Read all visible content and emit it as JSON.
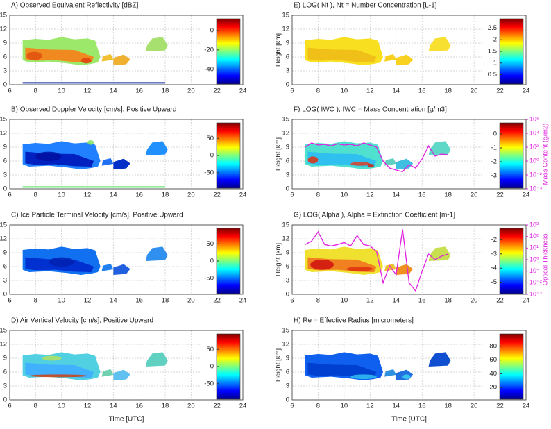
{
  "chart_data": [
    {
      "type": "heatmap",
      "title": "A) Observed Equivalent Reflectivity [dBZ]",
      "xlim": [
        6,
        24
      ],
      "xticks": [
        6,
        8,
        10,
        12,
        14,
        16,
        18,
        20,
        22,
        24
      ],
      "ylim": [
        0,
        15
      ],
      "yticks": [
        0,
        3,
        6,
        9,
        12,
        15
      ],
      "grid": true,
      "colorbar": {
        "colormap": "jet",
        "lim": [
          -55,
          12
        ],
        "ticks": [
          0,
          -20,
          -40
        ]
      }
    },
    {
      "type": "heatmap",
      "title": "B) Observed Doppler Velocity [cm/s], Positive Upward",
      "xlim": [
        6,
        24
      ],
      "xticks": [
        6,
        8,
        10,
        12,
        14,
        16,
        18,
        20,
        22,
        24
      ],
      "ylim": [
        0,
        15
      ],
      "yticks": [
        0,
        3,
        6,
        9,
        12,
        15
      ],
      "grid": true,
      "colorbar": {
        "colormap": "jet",
        "lim": [
          -95,
          95
        ],
        "ticks": [
          50,
          0,
          -50
        ]
      }
    },
    {
      "type": "heatmap",
      "title": "C) Ice Particle Terminal Velocity [cm/s], Positive Upward",
      "xlim": [
        6,
        24
      ],
      "xticks": [
        6,
        8,
        10,
        12,
        14,
        16,
        18,
        20,
        22,
        24
      ],
      "ylim": [
        0,
        15
      ],
      "yticks": [
        0,
        3,
        6,
        9,
        12,
        15
      ],
      "grid": true,
      "colorbar": {
        "colormap": "jet",
        "lim": [
          -95,
          95
        ],
        "ticks": [
          50,
          0,
          -50
        ]
      }
    },
    {
      "type": "heatmap",
      "title": "D) Air Vertical Velocity [cm/s], Positive Upward",
      "xlim": [
        6,
        24
      ],
      "xticks": [
        6,
        8,
        10,
        12,
        14,
        16,
        18,
        20,
        22,
        24
      ],
      "ylim": [
        0,
        15
      ],
      "yticks": [
        0,
        3,
        6,
        9,
        12,
        15
      ],
      "grid": true,
      "xlabel": "Time [UTC]",
      "colorbar": {
        "colormap": "jet",
        "lim": [
          -95,
          95
        ],
        "ticks": [
          50,
          0,
          -50
        ]
      }
    },
    {
      "type": "heatmap",
      "title": "E) LOG( Nt ), Nt = Number Concentration [L-1]",
      "xlim": [
        6,
        24
      ],
      "xticks": [
        6,
        8,
        10,
        12,
        14,
        16,
        18,
        20,
        22,
        24
      ],
      "ylim": [
        0,
        15
      ],
      "yticks": [
        0,
        3,
        6,
        9,
        12,
        15
      ],
      "grid": true,
      "ylabel": "Height [km]",
      "colorbar": {
        "colormap": "jet",
        "lim": [
          0.1,
          2.9
        ],
        "ticks": [
          0.5,
          1,
          1.5,
          2,
          2.5
        ]
      }
    },
    {
      "type": "heatmap",
      "title": "F) LOG( IWC ), IWC = Mass Concentration [g/m3]",
      "xlim": [
        6,
        24
      ],
      "xticks": [
        6,
        8,
        10,
        12,
        14,
        16,
        18,
        20,
        22,
        24
      ],
      "ylim": [
        0,
        15
      ],
      "yticks": [
        0,
        3,
        6,
        9,
        12,
        15
      ],
      "grid": true,
      "ylabel": "Height [km]",
      "colorbar": {
        "colormap": "jet",
        "lim": [
          -3.9,
          0.8
        ],
        "ticks": [
          0,
          -1,
          -2,
          -3
        ]
      },
      "y2lim": [
        0.0001,
        1000000
      ],
      "y2log": true,
      "y2label": "Mass Content (g/m2)",
      "y2ticks": [
        {
          "value": 1000000,
          "label": "10⁶"
        },
        {
          "value": 10000,
          "label": "10⁴"
        },
        {
          "value": 100,
          "label": "10²"
        },
        {
          "value": 1,
          "label": "10⁰"
        },
        {
          "value": 0.01,
          "label": "10⁻²"
        },
        {
          "value": 0.0001,
          "label": "10⁻⁴"
        }
      ],
      "line": {
        "color": "#e020e0",
        "axis": "y2",
        "x": [
          7,
          7.5,
          8,
          8.5,
          9,
          9.5,
          10,
          10.5,
          11,
          11.5,
          12,
          12.5,
          13,
          13.5,
          14,
          14.5,
          15,
          15.5,
          16,
          16.5,
          17,
          17.5,
          18
        ],
        "values": [
          100,
          400,
          200,
          250,
          150,
          300,
          200,
          250,
          150,
          400,
          200,
          100,
          1,
          0.1,
          0.05,
          0.03,
          0.3,
          0.1,
          2,
          150,
          5,
          10,
          8
        ]
      }
    },
    {
      "type": "heatmap",
      "title": "G) LOG( Alpha ), Alpha = Extinction Coefficient [m-1]",
      "xlim": [
        6,
        24
      ],
      "xticks": [
        6,
        8,
        10,
        12,
        14,
        16,
        18,
        20,
        22,
        24
      ],
      "ylim": [
        0,
        15
      ],
      "yticks": [
        0,
        3,
        6,
        9,
        12,
        15
      ],
      "grid": true,
      "ylabel": "Height [km]",
      "colorbar": {
        "colormap": "jet",
        "lim": [
          -5.8,
          -1.2
        ],
        "ticks": [
          -2,
          -3,
          -4,
          -5
        ]
      },
      "y2lim": [
        0.001,
        1000
      ],
      "y2log": true,
      "y2label": "Optical Thickness",
      "y2ticks": [
        {
          "value": 1000,
          "label": "10³"
        },
        {
          "value": 100,
          "label": "10²"
        },
        {
          "value": 10,
          "label": "10¹"
        },
        {
          "value": 1,
          "label": "10⁰"
        },
        {
          "value": 0.1,
          "label": "10⁻¹"
        },
        {
          "value": 0.01,
          "label": "10⁻²"
        },
        {
          "value": 0.001,
          "label": "10⁻³"
        }
      ],
      "line": {
        "color": "#e020e0",
        "axis": "y2",
        "x": [
          7,
          7.5,
          8,
          8.5,
          9,
          9.5,
          10,
          10.5,
          11,
          11.5,
          12,
          12.5,
          13,
          13.5,
          14,
          14.5,
          15,
          15.5,
          16,
          16.5,
          17,
          17.5,
          18
        ],
        "values": [
          20,
          40,
          250,
          20,
          15,
          20,
          30,
          15,
          120,
          20,
          15,
          5,
          0.01,
          0.3,
          0.05,
          400,
          0.01,
          0.002,
          0.1,
          3,
          1,
          2,
          3
        ]
      }
    },
    {
      "type": "heatmap",
      "title": "H) Re = Effective Radius [micrometers]",
      "xlim": [
        6,
        24
      ],
      "xticks": [
        6,
        8,
        10,
        12,
        14,
        16,
        18,
        20,
        22,
        24
      ],
      "ylim": [
        0,
        15
      ],
      "yticks": [
        0,
        3,
        6,
        9,
        12,
        15
      ],
      "grid": true,
      "ylabel": "Height [km]",
      "xlabel": "Time [UTC]",
      "colorbar": {
        "colormap": "jet",
        "lim": [
          3,
          98
        ],
        "ticks": [
          20,
          40,
          60,
          80
        ]
      }
    }
  ]
}
